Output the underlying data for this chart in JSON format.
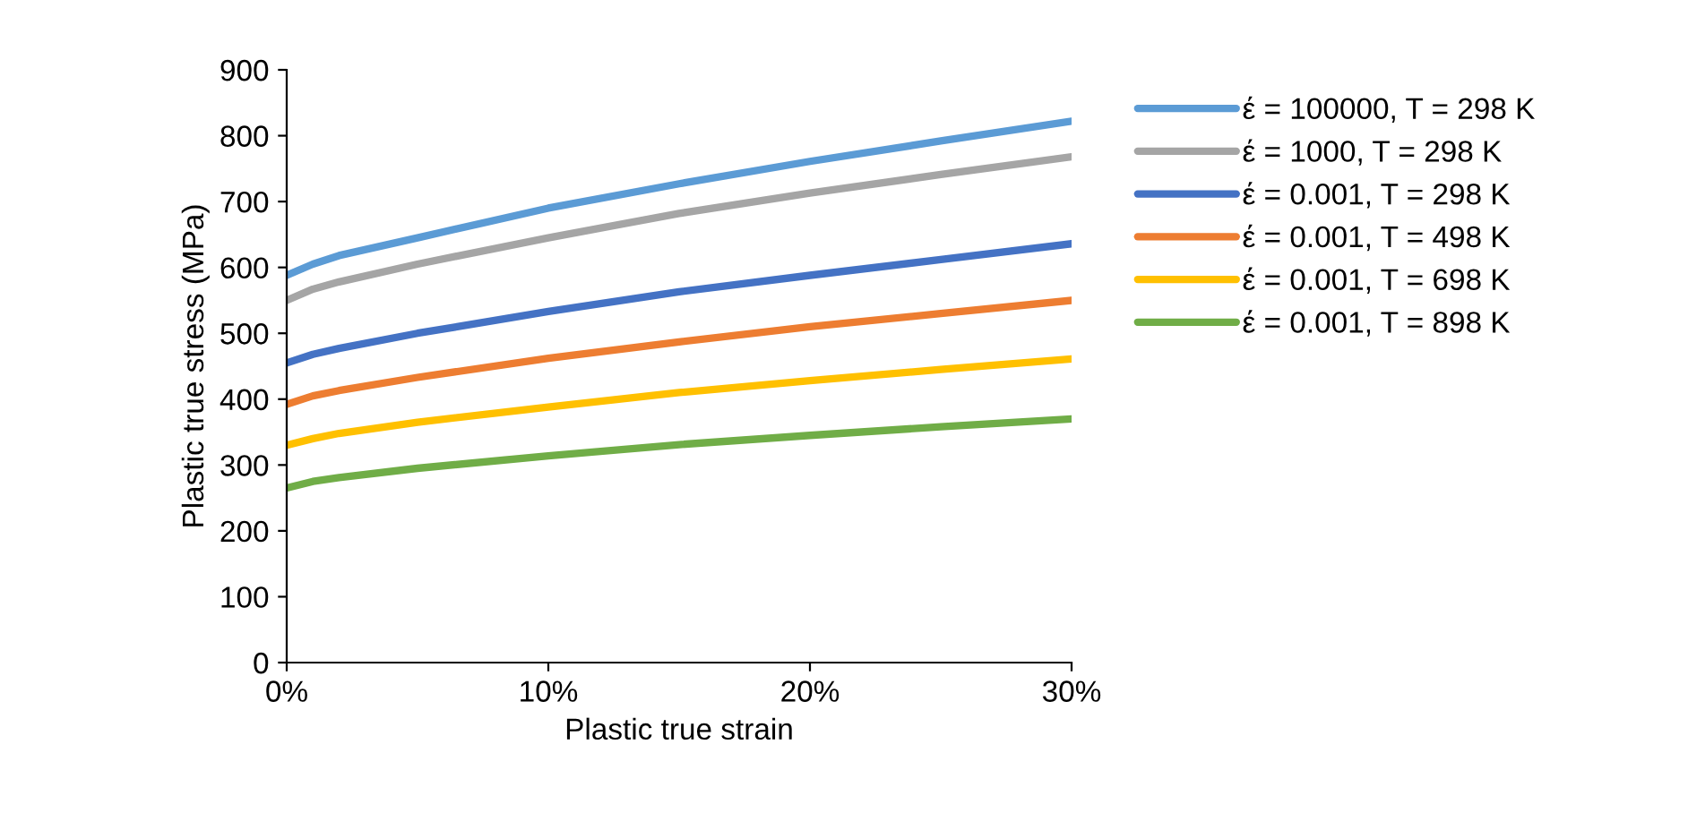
{
  "chart_data": {
    "type": "line",
    "xlabel": "Plastic true strain",
    "ylabel": "Plastic true stress (MPa)",
    "x": [
      0,
      1,
      2,
      5,
      10,
      15,
      20,
      25,
      30
    ],
    "series": [
      {
        "name": "έ = 100000, T = 298 K",
        "color": "#5b9bd5",
        "values": [
          588,
          605,
          618,
          645,
          690,
          727,
          761,
          792,
          822
        ]
      },
      {
        "name": "έ = 1000, T = 298 K",
        "color": "#a5a5a5",
        "values": [
          550,
          567,
          578,
          605,
          645,
          682,
          713,
          741,
          768
        ]
      },
      {
        "name": "έ = 0.001, T = 298 K",
        "color": "#4472c4",
        "values": [
          455,
          468,
          477,
          500,
          533,
          563,
          588,
          612,
          636
        ]
      },
      {
        "name": "έ = 0.001, T = 498 K",
        "color": "#ed7d31",
        "values": [
          392,
          405,
          413,
          433,
          462,
          487,
          510,
          530,
          550
        ]
      },
      {
        "name": "έ = 0.001, T = 698 K",
        "color": "#ffc000",
        "values": [
          330,
          340,
          348,
          365,
          388,
          410,
          428,
          445,
          461
        ]
      },
      {
        "name": "έ = 0.001, T = 898 K",
        "color": "#70ad47",
        "values": [
          265,
          275,
          281,
          295,
          314,
          331,
          345,
          358,
          370
        ]
      }
    ],
    "xlim": [
      0,
      30
    ],
    "xticks": [
      {
        "value": 0,
        "label": "0%"
      },
      {
        "value": 10,
        "label": "10%"
      },
      {
        "value": 20,
        "label": "20%"
      },
      {
        "value": 30,
        "label": "30%"
      }
    ],
    "ylim": [
      0,
      900
    ],
    "yticks": [
      0,
      100,
      200,
      300,
      400,
      500,
      600,
      700,
      800,
      900
    ],
    "grid": false,
    "legend": "right",
    "marker": "none",
    "line_style": "solid"
  }
}
